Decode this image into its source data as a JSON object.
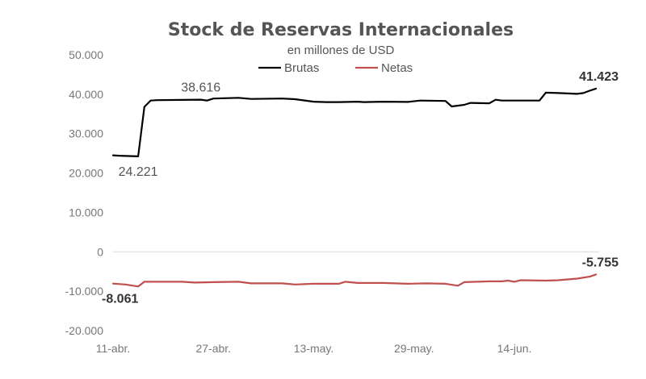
{
  "chart_data": {
    "type": "line",
    "title": "Stock de Reservas Internacionales",
    "subtitle": "en millones de USD",
    "xlabel": "",
    "ylabel": "",
    "ylim": [
      -20000,
      50000
    ],
    "yticks": [
      50000,
      40000,
      30000,
      20000,
      10000,
      0,
      -10000,
      -20000
    ],
    "ytick_labels": [
      "50.000",
      "40.000",
      "30.000",
      "20.000",
      "10.000",
      "0",
      "-10.000",
      "-20.000"
    ],
    "x_range": [
      "2024-04-11",
      "2024-06-27"
    ],
    "xticks": [
      "2024-04-11",
      "2024-04-27",
      "2024-05-13",
      "2024-05-29",
      "2024-06-14"
    ],
    "xtick_labels": [
      "11-abr.",
      "27-abr.",
      "13-may.",
      "29-may.",
      "14-jun."
    ],
    "grid": false,
    "legend_position": "top-center",
    "series": [
      {
        "name": "Brutas",
        "color": "#000000",
        "points": [
          [
            "2024-04-11",
            24500
          ],
          [
            "2024-04-12",
            24400
          ],
          [
            "2024-04-15",
            24221
          ],
          [
            "2024-04-16",
            36800
          ],
          [
            "2024-04-17",
            38400
          ],
          [
            "2024-04-18",
            38500
          ],
          [
            "2024-04-22",
            38550
          ],
          [
            "2024-04-25",
            38616
          ],
          [
            "2024-04-26",
            38400
          ],
          [
            "2024-04-27",
            38900
          ],
          [
            "2024-05-01",
            39100
          ],
          [
            "2024-05-03",
            38800
          ],
          [
            "2024-05-08",
            38900
          ],
          [
            "2024-05-10",
            38750
          ],
          [
            "2024-05-13",
            38100
          ],
          [
            "2024-05-15",
            38000
          ],
          [
            "2024-05-17",
            38000
          ],
          [
            "2024-05-20",
            38100
          ],
          [
            "2024-05-21",
            38000
          ],
          [
            "2024-05-24",
            38100
          ],
          [
            "2024-05-28",
            38050
          ],
          [
            "2024-05-30",
            38400
          ],
          [
            "2024-06-03",
            38300
          ],
          [
            "2024-06-04",
            36900
          ],
          [
            "2024-06-06",
            37300
          ],
          [
            "2024-06-07",
            37800
          ],
          [
            "2024-06-10",
            37700
          ],
          [
            "2024-06-11",
            38600
          ],
          [
            "2024-06-12",
            38400
          ],
          [
            "2024-06-14",
            38400
          ],
          [
            "2024-06-18",
            38400
          ],
          [
            "2024-06-19",
            40400
          ],
          [
            "2024-06-21",
            40300
          ],
          [
            "2024-06-24",
            40100
          ],
          [
            "2024-06-25",
            40300
          ],
          [
            "2024-06-26",
            40900
          ],
          [
            "2024-06-27",
            41423
          ]
        ]
      },
      {
        "name": "Netas",
        "color": "#c0504d",
        "points": [
          [
            "2024-04-11",
            -8061
          ],
          [
            "2024-04-13",
            -8300
          ],
          [
            "2024-04-15",
            -8800
          ],
          [
            "2024-04-16",
            -7600
          ],
          [
            "2024-04-17",
            -7600
          ],
          [
            "2024-04-22",
            -7600
          ],
          [
            "2024-04-24",
            -7800
          ],
          [
            "2024-04-27",
            -7700
          ],
          [
            "2024-05-01",
            -7600
          ],
          [
            "2024-05-03",
            -8000
          ],
          [
            "2024-05-08",
            -8000
          ],
          [
            "2024-05-10",
            -8300
          ],
          [
            "2024-05-13",
            -8100
          ],
          [
            "2024-05-15",
            -8100
          ],
          [
            "2024-05-17",
            -8100
          ],
          [
            "2024-05-18",
            -7600
          ],
          [
            "2024-05-20",
            -7900
          ],
          [
            "2024-05-24",
            -7900
          ],
          [
            "2024-05-28",
            -8100
          ],
          [
            "2024-05-31",
            -8000
          ],
          [
            "2024-06-03",
            -8100
          ],
          [
            "2024-06-05",
            -8600
          ],
          [
            "2024-06-06",
            -7700
          ],
          [
            "2024-06-10",
            -7500
          ],
          [
            "2024-06-12",
            -7500
          ],
          [
            "2024-06-13",
            -7300
          ],
          [
            "2024-06-14",
            -7600
          ],
          [
            "2024-06-15",
            -7200
          ],
          [
            "2024-06-19",
            -7300
          ],
          [
            "2024-06-21",
            -7200
          ],
          [
            "2024-06-24",
            -6800
          ],
          [
            "2024-06-26",
            -6300
          ],
          [
            "2024-06-27",
            -5755
          ]
        ]
      }
    ],
    "annotations": [
      {
        "text": "38.616",
        "series": "Brutas",
        "x": "2024-04-25",
        "y": 38616,
        "placement": "above",
        "bold": false
      },
      {
        "text": "24.221",
        "series": "Brutas",
        "x": "2024-04-15",
        "y": 24221,
        "placement": "below",
        "bold": false
      },
      {
        "text": "41.423",
        "series": "Brutas",
        "x": "2024-06-27",
        "y": 41423,
        "placement": "above",
        "bold": true
      },
      {
        "text": "-8.061",
        "series": "Netas",
        "x": "2024-04-11",
        "y": -8061,
        "placement": "below",
        "bold": true
      },
      {
        "text": "-5.755",
        "series": "Netas",
        "x": "2024-06-27",
        "y": -5755,
        "placement": "above",
        "bold": true
      }
    ]
  }
}
